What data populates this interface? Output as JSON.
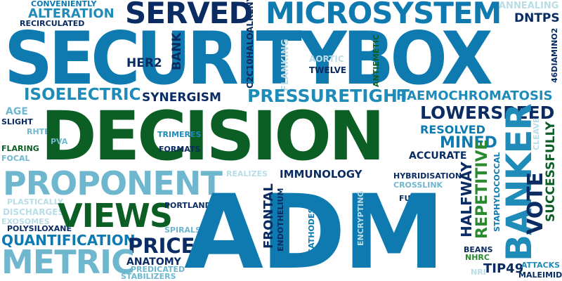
{
  "words": {
    "securitybox": "SECURITYBOX",
    "decision": "DECISION",
    "adm": "ADM",
    "microsystem": "MICROSYSTEM",
    "served": "SERVED",
    "proponent": "PROPONENT",
    "views": "VIEWS",
    "metric": "METRIC",
    "pressuretight": "PRESSURETIGHT",
    "isoelectric": "ISOELECTRIC",
    "lowerspeed": "LOWERSPEED",
    "banker": "BANKER",
    "vote": "VOTE",
    "quantification": "QUANTIFICATION",
    "price": "PRICE",
    "haemochromatosis": "HAEMOCHROMATOSIS",
    "alteration": "ALTERATION",
    "conveniently": "CONVENIENTLY",
    "recirculated": "RECIRCULATED",
    "dntps": "DNTPS",
    "annealing": "ANNEALING",
    "synergism": "SYNERGISM",
    "her2": "HER2",
    "bank": "BANK",
    "twelve": "TWELVE",
    "aortic": "AORTIC",
    "flanking": "FLANKING",
    "antiemetic": "ANTIEMETIC",
    "c2c10haloalkenyl": "C2C10HALOALKENYL",
    "diamino2": "46DIAMINO2",
    "age": "AGE",
    "slight": "SLIGHT",
    "rhtbi": "RHTBI",
    "flaring": "FLARING",
    "pva": "PVA",
    "focal": "FOCAL",
    "trimeres": "TRIMERES",
    "formats": "FORMATS",
    "resolved": "RESOLVED",
    "mined": "MINED",
    "accurate": "ACCURATE",
    "repetitive": "REPETITIVE",
    "halfway": "HALFWAY",
    "staphylococcal": "STAPHYLOCOCCAL",
    "successfully": "SUCCESSFULLY",
    "cleave": "CLEAVE",
    "immunology": "IMMUNOLOGY",
    "hybridisation": "HYBRIDISATION",
    "crosslink": "CROSSLINK",
    "future": "FUTURE",
    "realizes": "REALIZES",
    "frontal": "FRONTAL",
    "endothelium": "ENDOTHELIUM",
    "cathodes": "CATHODES",
    "encrypting": "ENCRYPTING",
    "portland": "PORTLAND",
    "plastically": "PLASTICALLY",
    "discharges": "DISCHARGES",
    "exosomes": "EXOSOMES",
    "polysiloxane": "POLYSILOXANE",
    "spirals": "SPIRALS",
    "anatomy": "ANATOMY",
    "predicated": "PREDICATED",
    "stabilizers": "STABILIZERS",
    "beans": "BEANS",
    "nhrc": "NHRC",
    "tip49": "TIP49",
    "attacks": "ATTACKS",
    "maleimide": "MALEIMIDE",
    "nr": "NRI"
  }
}
